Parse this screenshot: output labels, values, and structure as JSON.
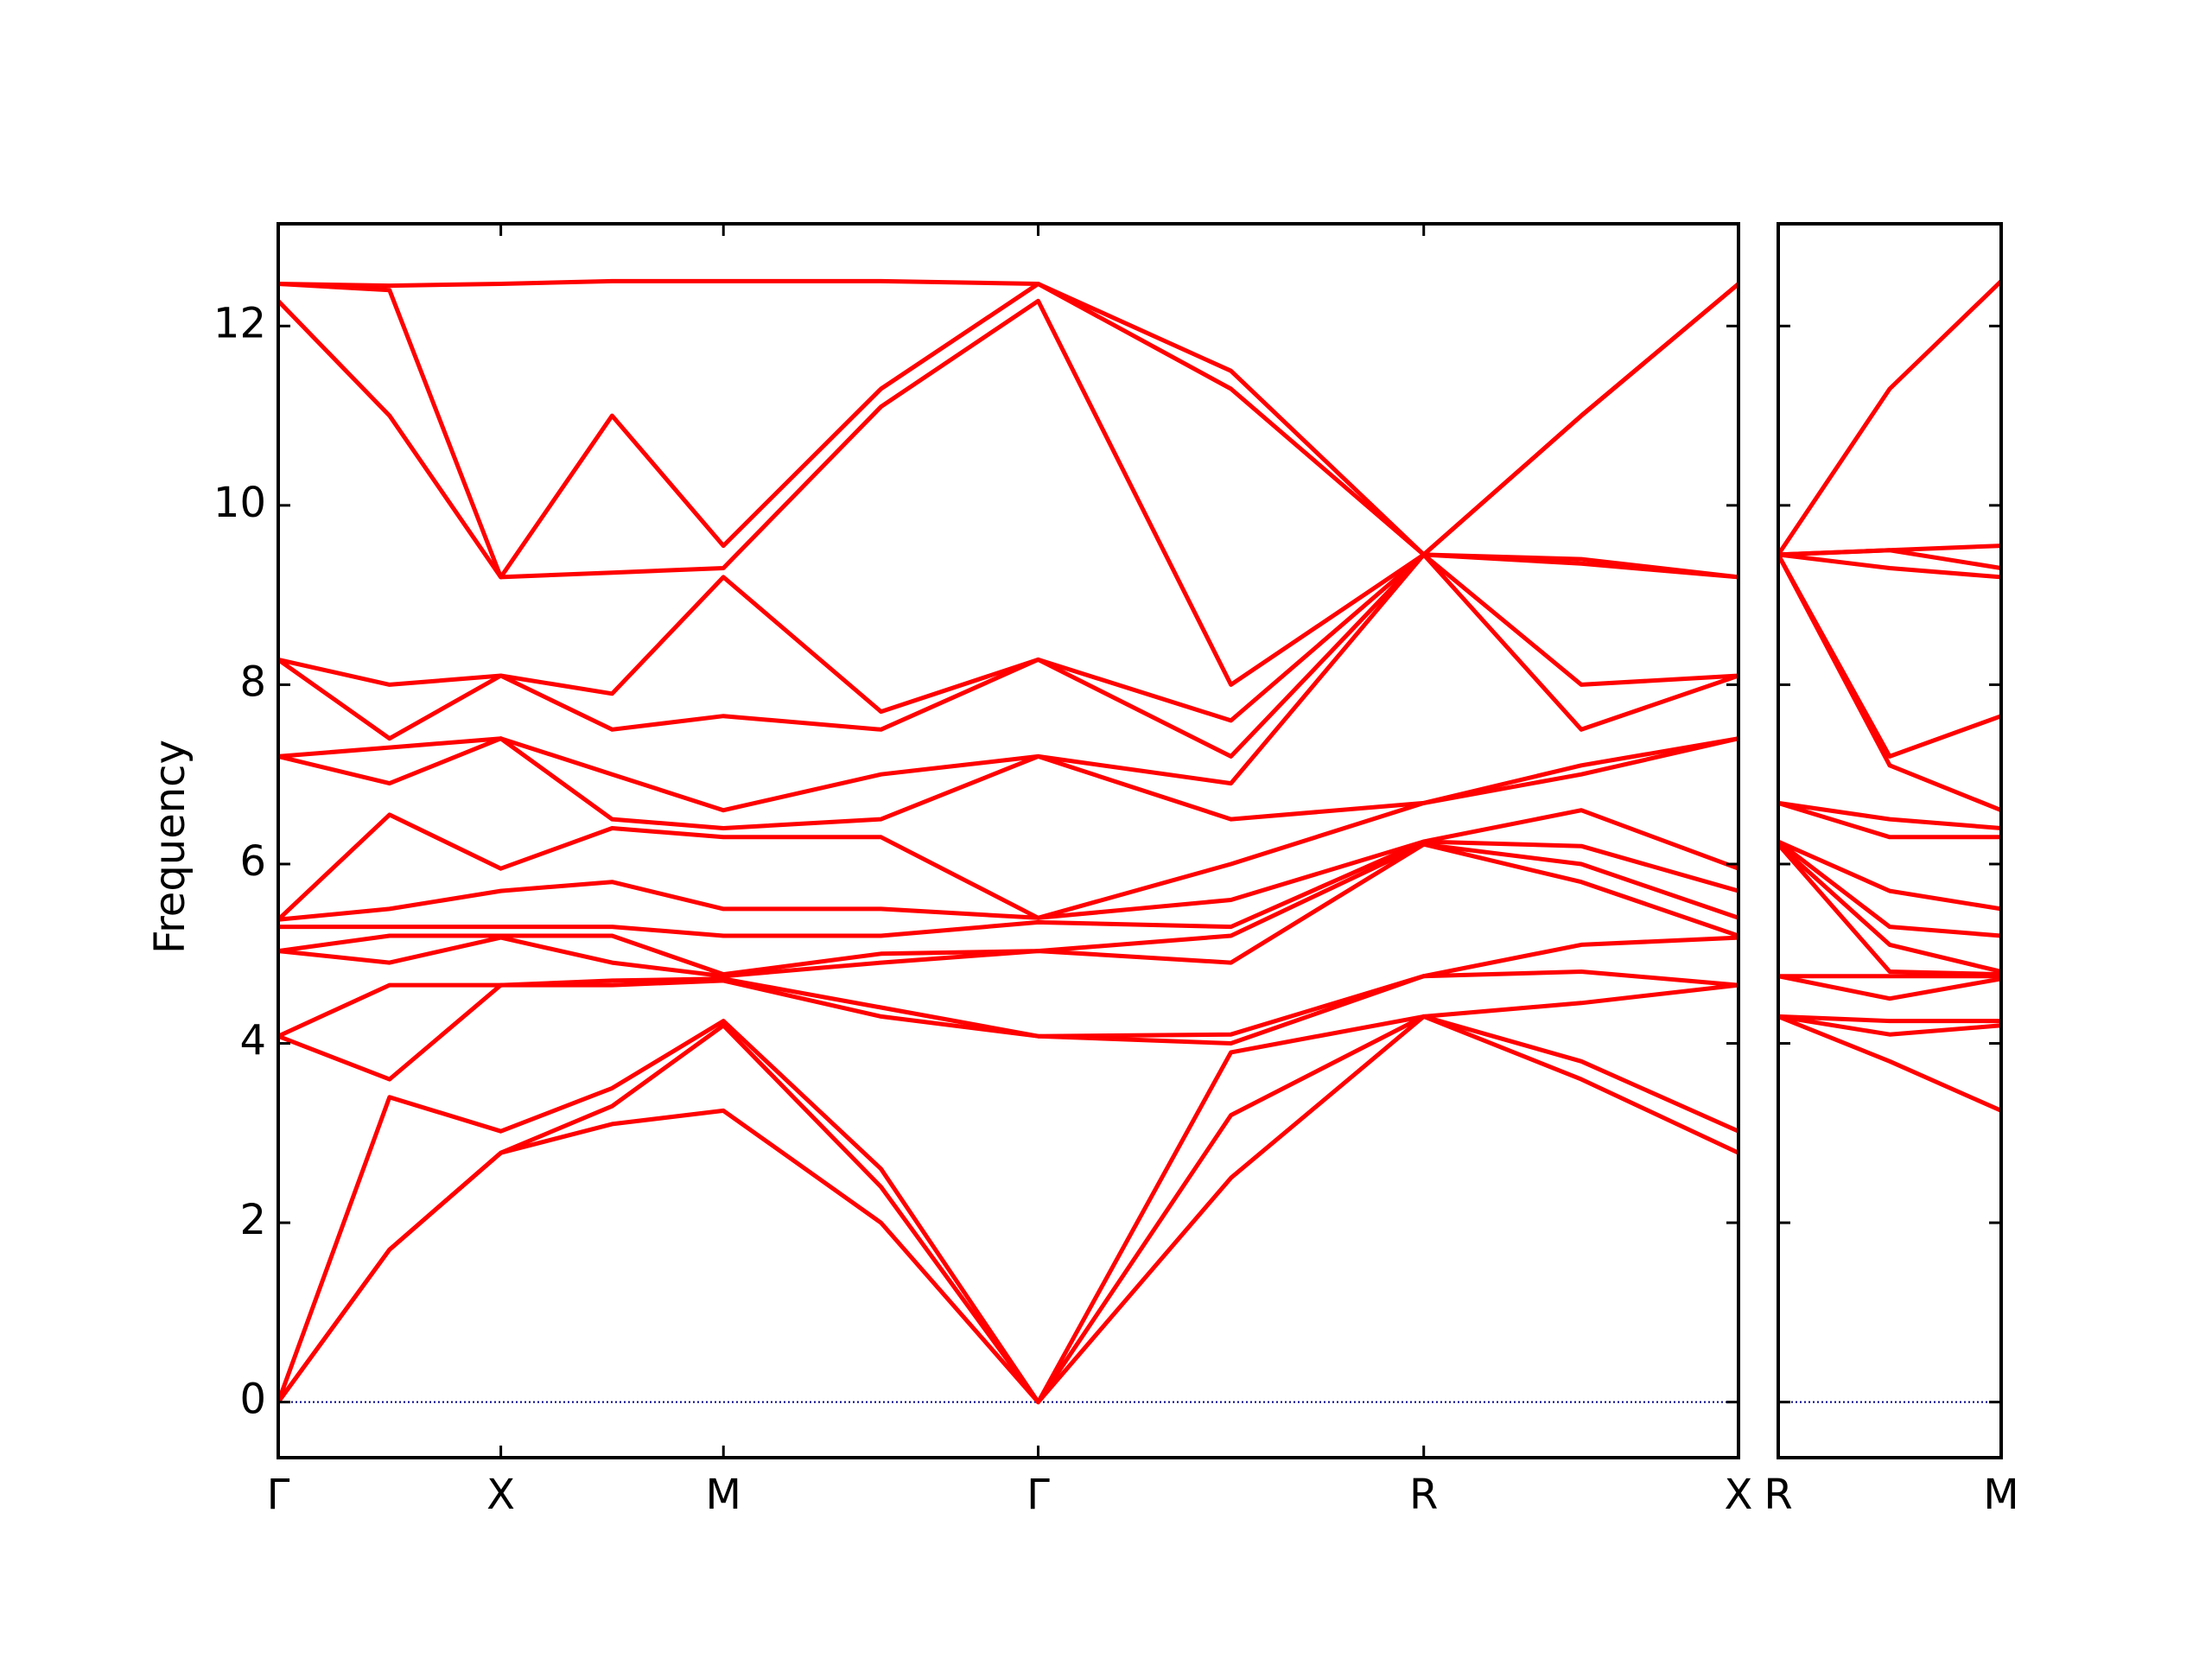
{
  "chart_data": [
    {
      "type": "line",
      "ylabel": "Frequency",
      "color": "#ff0000",
      "zero_line_color": "#00008b",
      "show_ytick_labels": true,
      "x": [
        0,
        0.25,
        0.5,
        0.75,
        1.0,
        1.354,
        1.707,
        2.14,
        2.573,
        2.927,
        3.28
      ],
      "xlim": [
        0,
        3.28
      ],
      "xticks": [
        {
          "value": 0,
          "label": "Γ"
        },
        {
          "value": 0.5,
          "label": "X"
        },
        {
          "value": 1.0,
          "label": "M"
        },
        {
          "value": 1.707,
          "label": "Γ"
        },
        {
          "value": 2.573,
          "label": "R"
        },
        {
          "value": 3.28,
          "label": "X"
        }
      ],
      "ylim": [
        -0.62,
        13.14
      ],
      "yticks": [
        0,
        2,
        4,
        6,
        8,
        10,
        12
      ],
      "series": [
        {
          "values": [
            0,
            1.7,
            2.78,
            3.1,
            3.25,
            2.0,
            0,
            2.5,
            4.3,
            3.6,
            2.78
          ]
        },
        {
          "values": [
            0,
            1.7,
            2.78,
            3.3,
            4.2,
            2.4,
            0,
            3.2,
            4.3,
            3.8,
            3.02
          ]
        },
        {
          "values": [
            0,
            3.4,
            3.02,
            3.5,
            4.25,
            2.6,
            0,
            3.9,
            4.3,
            4.45,
            4.65
          ]
        },
        {
          "values": [
            4.08,
            3.6,
            4.65,
            4.65,
            4.7,
            4.3,
            4.08,
            4.0,
            4.75,
            4.8,
            4.65
          ]
        },
        {
          "values": [
            4.08,
            4.65,
            4.65,
            4.7,
            4.72,
            4.4,
            4.08,
            4.1,
            4.75,
            5.1,
            5.18
          ]
        },
        {
          "values": [
            5.03,
            4.9,
            5.18,
            4.9,
            4.75,
            4.9,
            5.03,
            4.9,
            6.22,
            5.8,
            5.2
          ]
        },
        {
          "values": [
            5.03,
            5.2,
            5.2,
            5.2,
            4.77,
            5.0,
            5.03,
            5.2,
            6.22,
            6.0,
            5.4
          ]
        },
        {
          "values": [
            5.3,
            5.3,
            5.3,
            5.3,
            5.2,
            5.2,
            5.35,
            5.3,
            6.25,
            6.2,
            5.7
          ]
        },
        {
          "values": [
            5.38,
            5.5,
            5.7,
            5.8,
            5.5,
            5.5,
            5.4,
            5.6,
            6.25,
            6.6,
            5.95
          ]
        },
        {
          "values": [
            5.38,
            6.55,
            5.95,
            6.4,
            6.3,
            6.3,
            5.4,
            6.0,
            6.68,
            7.0,
            7.4
          ]
        },
        {
          "values": [
            7.2,
            6.9,
            7.4,
            6.5,
            6.4,
            6.5,
            7.2,
            6.5,
            6.68,
            7.1,
            7.4
          ]
        },
        {
          "values": [
            7.2,
            7.3,
            7.4,
            7.0,
            6.6,
            7.0,
            7.2,
            6.9,
            9.45,
            7.5,
            8.1
          ]
        },
        {
          "values": [
            8.28,
            7.4,
            8.1,
            7.5,
            7.65,
            7.5,
            8.28,
            7.2,
            9.45,
            8.0,
            8.1
          ]
        },
        {
          "values": [
            8.28,
            8.0,
            8.1,
            7.9,
            9.2,
            7.7,
            8.28,
            7.6,
            9.45,
            9.35,
            9.2
          ]
        },
        {
          "values": [
            12.28,
            11.0,
            9.2,
            9.25,
            9.3,
            11.1,
            12.28,
            8.0,
            9.45,
            9.4,
            9.2
          ]
        },
        {
          "values": [
            12.47,
            12.4,
            9.2,
            11.0,
            9.55,
            11.3,
            12.47,
            11.3,
            9.45,
            11.0,
            12.47
          ]
        },
        {
          "values": [
            12.47,
            12.45,
            12.47,
            12.5,
            12.5,
            12.5,
            12.47,
            11.5,
            9.45,
            11.0,
            12.47
          ]
        }
      ]
    },
    {
      "type": "line",
      "color": "#ff0000",
      "zero_line_color": "#00008b",
      "show_ytick_labels": false,
      "x": [
        0,
        0.25,
        0.5
      ],
      "xlim": [
        0,
        0.5
      ],
      "xticks": [
        {
          "value": 0,
          "label": "R"
        },
        {
          "value": 0.5,
          "label": "M"
        }
      ],
      "ylim": [
        -0.62,
        13.14
      ],
      "yticks": [
        0,
        2,
        4,
        6,
        8,
        10,
        12
      ],
      "series": [
        {
          "values": [
            4.3,
            3.8,
            3.25
          ]
        },
        {
          "values": [
            4.3,
            4.1,
            4.2
          ]
        },
        {
          "values": [
            4.3,
            4.25,
            4.25
          ]
        },
        {
          "values": [
            4.75,
            4.5,
            4.72
          ]
        },
        {
          "values": [
            4.75,
            4.75,
            4.75
          ]
        },
        {
          "values": [
            6.22,
            4.8,
            4.77
          ]
        },
        {
          "values": [
            6.22,
            5.1,
            4.8
          ]
        },
        {
          "values": [
            6.25,
            5.3,
            5.2
          ]
        },
        {
          "values": [
            6.25,
            5.7,
            5.5
          ]
        },
        {
          "values": [
            6.68,
            6.3,
            6.3
          ]
        },
        {
          "values": [
            6.68,
            6.5,
            6.4
          ]
        },
        {
          "values": [
            9.45,
            7.1,
            6.6
          ]
        },
        {
          "values": [
            9.45,
            7.2,
            7.65
          ]
        },
        {
          "values": [
            9.45,
            9.3,
            9.2
          ]
        },
        {
          "values": [
            9.45,
            9.5,
            9.3
          ]
        },
        {
          "values": [
            9.45,
            9.5,
            9.55
          ]
        },
        {
          "values": [
            9.45,
            11.3,
            12.5
          ]
        }
      ]
    }
  ]
}
